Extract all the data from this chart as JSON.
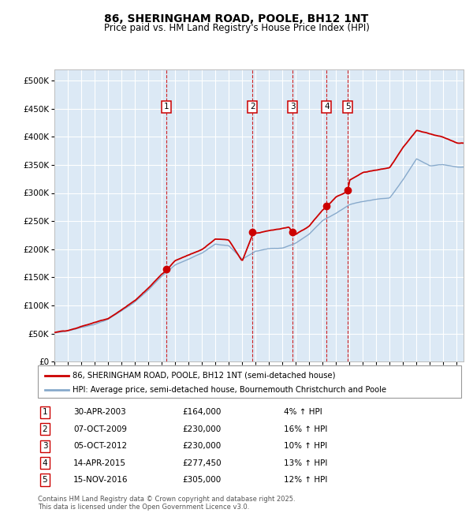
{
  "title": "86, SHERINGHAM ROAD, POOLE, BH12 1NT",
  "subtitle": "Price paid vs. HM Land Registry's House Price Index (HPI)",
  "background_color": "#ffffff",
  "plot_bg_color": "#dce9f5",
  "red_line_label": "86, SHERINGHAM ROAD, POOLE, BH12 1NT (semi-detached house)",
  "blue_line_label": "HPI: Average price, semi-detached house, Bournemouth Christchurch and Poole",
  "footer": "Contains HM Land Registry data © Crown copyright and database right 2025.\nThis data is licensed under the Open Government Licence v3.0.",
  "sale_markers": [
    {
      "num": 1,
      "date": "30-APR-2003",
      "year": 2003.33,
      "price": 164000,
      "pct": "4%",
      "dir": "↑"
    },
    {
      "num": 2,
      "date": "07-OCT-2009",
      "year": 2009.77,
      "price": 230000,
      "pct": "16%",
      "dir": "↑"
    },
    {
      "num": 3,
      "date": "05-OCT-2012",
      "year": 2012.77,
      "price": 230000,
      "pct": "10%",
      "dir": "↑"
    },
    {
      "num": 4,
      "date": "14-APR-2015",
      "year": 2015.29,
      "price": 277450,
      "pct": "13%",
      "dir": "↑"
    },
    {
      "num": 5,
      "date": "15-NOV-2016",
      "year": 2016.88,
      "price": 305000,
      "pct": "12%",
      "dir": "↑"
    }
  ],
  "ylim": [
    0,
    520000
  ],
  "xlim_start": 1995,
  "xlim_end": 2025.5,
  "yticks": [
    0,
    50000,
    100000,
    150000,
    200000,
    250000,
    300000,
    350000,
    400000,
    450000,
    500000
  ],
  "ytick_labels": [
    "£0",
    "£50K",
    "£100K",
    "£150K",
    "£200K",
    "£250K",
    "£300K",
    "£350K",
    "£400K",
    "£450K",
    "£500K"
  ],
  "xticks": [
    1995,
    1996,
    1997,
    1998,
    1999,
    2000,
    2001,
    2002,
    2003,
    2004,
    2005,
    2006,
    2007,
    2008,
    2009,
    2010,
    2011,
    2012,
    2013,
    2014,
    2015,
    2016,
    2017,
    2018,
    2019,
    2020,
    2021,
    2022,
    2023,
    2024,
    2025
  ],
  "red_color": "#cc0000",
  "blue_color": "#88aacc",
  "vline_color": "#cc0000",
  "marker_box_color": "#cc0000",
  "grid_color": "#ffffff",
  "table_rows": [
    [
      "1",
      "30-APR-2003",
      "£164,000",
      "4% ↑ HPI"
    ],
    [
      "2",
      "07-OCT-2009",
      "£230,000",
      "16% ↑ HPI"
    ],
    [
      "3",
      "05-OCT-2012",
      "£230,000",
      "10% ↑ HPI"
    ],
    [
      "4",
      "14-APR-2015",
      "£277,450",
      "13% ↑ HPI"
    ],
    [
      "5",
      "15-NOV-2016",
      "£305,000",
      "12% ↑ HPI"
    ]
  ]
}
